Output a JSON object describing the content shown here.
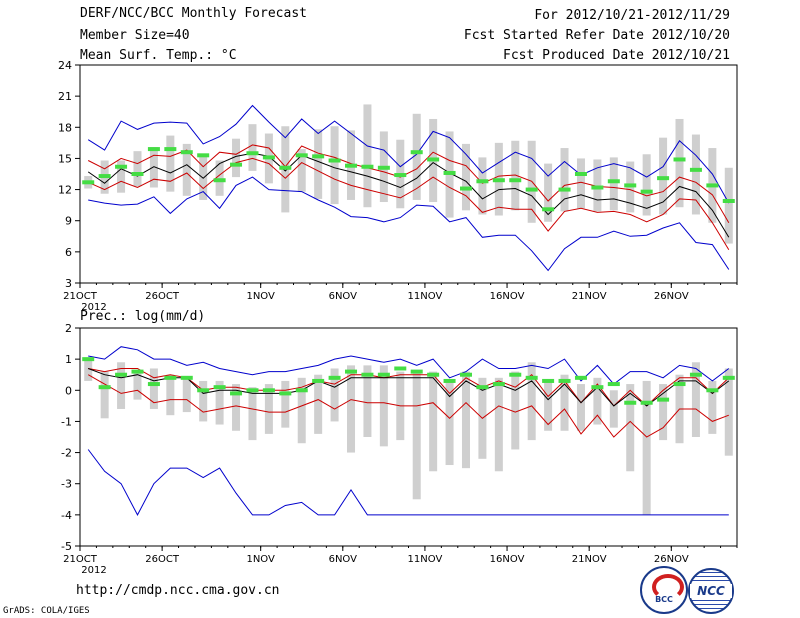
{
  "header": {
    "title": "DERF/NCC/BCC Monthly Forecast",
    "member_size": "Member Size=40",
    "variable1": "Mean Surf. Temp.: °C",
    "period": "For 2012/10/21-2012/11/29",
    "refer_date": "Fcst Started Refer Date 2012/10/20",
    "produced_date": "Fcst Produced Date 2012/10/21"
  },
  "footer": {
    "url": "http://cmdp.ncc.cma.gov.cn",
    "grads": "GrADS: COLA/IGES",
    "logo_bcc": "BCC",
    "logo_ncc": "NCC"
  },
  "colors": {
    "envelope": "#0000cc",
    "spread": "#cc0000",
    "mean": "#000000",
    "box": "#cfcfcf",
    "obs": "#44dd44"
  },
  "chart_data": [
    {
      "type": "line",
      "title": "Mean Surf. Temp.: °C",
      "ylim": [
        3,
        24
      ],
      "yticks": [
        3,
        6,
        9,
        12,
        15,
        18,
        21,
        24
      ],
      "xlabel_year": "2012",
      "xticks": [
        {
          "day": 1,
          "label": "21OCT"
        },
        {
          "day": 6,
          "label": "26OCT"
        },
        {
          "day": 12,
          "label": "1NOV"
        },
        {
          "day": 17,
          "label": "6NOV"
        },
        {
          "day": 22,
          "label": "11NOV"
        },
        {
          "day": 27,
          "label": "16NOV"
        },
        {
          "day": 32,
          "label": "21NOV"
        },
        {
          "day": 37,
          "label": "26NOV"
        }
      ],
      "days": 40,
      "series": [
        {
          "name": "max",
          "values": [
            16.8,
            15.8,
            18.6,
            17.8,
            18.4,
            18.5,
            18.4,
            16.4,
            17.1,
            18.3,
            20.1,
            18.5,
            17.0,
            18.8,
            17.4,
            18.6,
            17.4,
            16.2,
            15.8,
            14.2,
            15.4,
            17.6,
            17.0,
            15.4,
            13.6,
            14.6,
            15.6,
            15.0,
            13.3,
            14.7,
            13.4,
            14.1,
            14.5,
            14.1,
            13.2,
            14.2,
            16.7,
            15.3,
            13.5,
            10.7
          ]
        },
        {
          "name": "plus_sd",
          "values": [
            14.8,
            14.0,
            15.0,
            14.5,
            15.3,
            15.2,
            15.8,
            14.2,
            15.6,
            15.4,
            16.3,
            16.0,
            14.2,
            16.2,
            15.5,
            15.1,
            14.5,
            14.1,
            13.7,
            13.2,
            14.0,
            15.6,
            14.8,
            14.3,
            12.6,
            13.3,
            13.4,
            12.8,
            10.9,
            12.4,
            12.7,
            12.3,
            12.2,
            12.0,
            11.4,
            11.8,
            13.2,
            12.7,
            11.5,
            8.8
          ]
        },
        {
          "name": "mean",
          "values": [
            13.7,
            12.6,
            14.0,
            13.3,
            14.2,
            13.6,
            14.4,
            13.1,
            14.5,
            15.2,
            15.5,
            15.2,
            13.8,
            15.3,
            14.7,
            14.1,
            13.7,
            13.3,
            12.8,
            12.2,
            13.1,
            14.6,
            13.6,
            12.8,
            11.1,
            12.0,
            12.1,
            11.4,
            9.6,
            11.1,
            11.5,
            11.0,
            11.1,
            10.7,
            10.2,
            10.8,
            12.3,
            11.8,
            10.0,
            7.4
          ]
        },
        {
          "name": "minus_sd",
          "values": [
            12.7,
            12.0,
            12.8,
            12.2,
            13.0,
            12.8,
            13.6,
            12.1,
            13.4,
            14.6,
            15.0,
            14.5,
            13.1,
            14.6,
            13.8,
            13.0,
            12.4,
            12.0,
            11.6,
            11.2,
            12.1,
            13.2,
            12.2,
            11.4,
            9.8,
            10.3,
            10.1,
            10.1,
            8.0,
            9.9,
            10.2,
            9.8,
            9.9,
            9.6,
            8.9,
            9.6,
            11.1,
            11.0,
            8.8,
            6.2
          ]
        },
        {
          "name": "min",
          "values": [
            11.0,
            10.7,
            10.5,
            10.6,
            11.3,
            9.7,
            11.1,
            11.8,
            10.2,
            12.4,
            13.2,
            12.0,
            11.9,
            11.8,
            11.0,
            10.3,
            9.4,
            9.3,
            8.9,
            9.3,
            10.5,
            10.4,
            8.9,
            9.3,
            7.4,
            7.6,
            7.6,
            6.1,
            4.2,
            6.3,
            7.4,
            7.4,
            8.0,
            7.5,
            7.6,
            8.3,
            8.8,
            6.9,
            6.7,
            4.3
          ]
        },
        {
          "name": "box_hi",
          "values": [
            13.3,
            14.8,
            14.8,
            15.7,
            16.1,
            17.2,
            16.4,
            15.3,
            14.8,
            16.9,
            18.3,
            17.4,
            18.1,
            15.9,
            17.8,
            18.1,
            17.7,
            20.2,
            17.6,
            16.8,
            19.3,
            18.8,
            17.6,
            16.4,
            15.1,
            16.5,
            16.7,
            16.7,
            14.5,
            16.0,
            15.0,
            14.9,
            15.1,
            14.7,
            15.4,
            17.0,
            18.8,
            17.3,
            16.0,
            14.1
          ]
        },
        {
          "name": "box_lo",
          "values": [
            12.1,
            11.6,
            11.7,
            12.3,
            12.2,
            11.8,
            11.4,
            11.0,
            11.4,
            13.2,
            13.8,
            12.6,
            9.8,
            11.8,
            11.1,
            10.6,
            11.0,
            10.3,
            10.8,
            10.2,
            11.0,
            10.8,
            9.3,
            10.0,
            9.6,
            9.5,
            10.0,
            8.8,
            8.9,
            9.9,
            10.2,
            9.9,
            10.0,
            9.8,
            9.5,
            9.6,
            10.3,
            9.6,
            8.8,
            6.8
          ]
        },
        {
          "name": "observed",
          "values": [
            12.7,
            13.3,
            14.2,
            13.5,
            15.9,
            15.9,
            15.6,
            15.3,
            12.9,
            14.4,
            15.5,
            15.1,
            14.1,
            15.3,
            15.2,
            14.8,
            14.3,
            14.2,
            14.1,
            13.4,
            15.6,
            14.9,
            13.6,
            12.1,
            12.8,
            12.9,
            12.9,
            12.0,
            10.1,
            12.0,
            13.5,
            12.2,
            12.8,
            12.4,
            11.8,
            13.1,
            14.9,
            13.9,
            12.4,
            10.9
          ]
        }
      ]
    },
    {
      "type": "line",
      "title": "Prec.: log(mm/d)",
      "ylim": [
        -5,
        2
      ],
      "yticks": [
        -5,
        -4,
        -3,
        -2,
        -1,
        0,
        1,
        2
      ],
      "xlabel_year": "2012",
      "xticks": [
        {
          "day": 1,
          "label": "21OCT"
        },
        {
          "day": 6,
          "label": "26OCT"
        },
        {
          "day": 12,
          "label": "1NOV"
        },
        {
          "day": 17,
          "label": "6NOV"
        },
        {
          "day": 22,
          "label": "11NOV"
        },
        {
          "day": 27,
          "label": "16NOV"
        },
        {
          "day": 32,
          "label": "21NOV"
        },
        {
          "day": 37,
          "label": "26NOV"
        }
      ],
      "days": 40,
      "series": [
        {
          "name": "max",
          "values": [
            1.1,
            1.0,
            1.4,
            1.3,
            1.0,
            1.0,
            0.8,
            0.9,
            0.7,
            0.6,
            0.5,
            0.6,
            0.6,
            0.7,
            0.8,
            1.0,
            1.1,
            1.0,
            0.9,
            1.0,
            0.8,
            1.0,
            0.4,
            0.6,
            1.0,
            0.7,
            0.7,
            0.8,
            0.7,
            1.0,
            0.3,
            0.8,
            0.2,
            0.6,
            0.6,
            0.4,
            0.8,
            0.7,
            0.3,
            0.7
          ]
        },
        {
          "name": "plus_sd",
          "values": [
            0.7,
            0.6,
            0.7,
            0.7,
            0.4,
            0.5,
            0.4,
            0.0,
            0.1,
            0.1,
            0.0,
            0.0,
            0.0,
            0.1,
            0.3,
            0.2,
            0.5,
            0.5,
            0.4,
            0.5,
            0.5,
            0.5,
            -0.1,
            0.4,
            0.1,
            0.3,
            0.1,
            0.5,
            -0.2,
            0.3,
            -0.4,
            0.2,
            -0.5,
            0.0,
            -0.5,
            0.0,
            0.4,
            0.4,
            -0.1,
            0.4
          ]
        },
        {
          "name": "mean",
          "values": [
            0.7,
            0.5,
            0.4,
            0.5,
            0.3,
            0.4,
            0.4,
            -0.1,
            0.0,
            0.0,
            -0.1,
            -0.1,
            -0.1,
            0.0,
            0.3,
            0.1,
            0.4,
            0.4,
            0.4,
            0.4,
            0.4,
            0.4,
            -0.2,
            0.3,
            0.0,
            0.2,
            0.0,
            0.3,
            -0.3,
            0.2,
            -0.4,
            0.1,
            -0.5,
            -0.1,
            -0.5,
            -0.1,
            0.3,
            0.3,
            -0.1,
            0.3
          ]
        },
        {
          "name": "minus_sd",
          "values": [
            0.5,
            0.2,
            -0.1,
            0.0,
            -0.4,
            -0.3,
            -0.3,
            -0.7,
            -0.6,
            -0.5,
            -0.6,
            -0.7,
            -0.7,
            -0.5,
            -0.3,
            -0.6,
            -0.3,
            -0.4,
            -0.4,
            -0.5,
            -0.5,
            -0.4,
            -0.9,
            -0.4,
            -0.9,
            -0.5,
            -0.7,
            -0.5,
            -1.1,
            -0.6,
            -1.4,
            -0.8,
            -1.5,
            -1.0,
            -1.5,
            -1.2,
            -0.6,
            -0.6,
            -1.0,
            -0.8
          ]
        },
        {
          "name": "min",
          "values": [
            -1.9,
            -2.6,
            -3.0,
            -4.0,
            -3.0,
            -2.5,
            -2.5,
            -2.8,
            -2.5,
            -3.3,
            -4.0,
            -4.0,
            -3.7,
            -3.6,
            -4.0,
            -4.0,
            -3.2,
            -4.0,
            -4.0,
            -4.0,
            -4.0,
            -4.0,
            -4.0,
            -4.0,
            -4.0,
            -4.0,
            -4.0,
            -4.0,
            -4.0,
            -4.0,
            -4.0,
            -4.0,
            -4.0,
            -4.0,
            -4.0,
            -4.0,
            -4.0,
            -4.0,
            -4.0,
            -4.0
          ]
        },
        {
          "name": "box_hi",
          "values": [
            1.0,
            0.6,
            0.9,
            0.6,
            0.7,
            0.5,
            0.4,
            0.3,
            0.3,
            0.2,
            0.1,
            0.2,
            0.3,
            0.4,
            0.5,
            0.7,
            0.8,
            0.8,
            0.8,
            0.6,
            0.6,
            0.6,
            0.3,
            0.6,
            0.4,
            0.4,
            0.6,
            0.9,
            0.3,
            0.5,
            0.2,
            0.4,
            0.0,
            0.2,
            0.3,
            0.2,
            0.5,
            0.9,
            0.3,
            0.7
          ]
        },
        {
          "name": "box_lo",
          "values": [
            0.3,
            -0.9,
            -0.6,
            -0.3,
            -0.6,
            -0.8,
            -0.7,
            -1.0,
            -1.1,
            -1.3,
            -1.6,
            -1.4,
            -1.2,
            -1.7,
            -1.4,
            -1.0,
            -2.0,
            -1.5,
            -1.8,
            -1.6,
            -3.5,
            -2.6,
            -2.4,
            -2.5,
            -2.2,
            -2.6,
            -1.9,
            -1.6,
            -1.3,
            -1.3,
            -1.3,
            -1.1,
            -1.2,
            -2.6,
            -4.0,
            -1.6,
            -1.7,
            -1.5,
            -1.4,
            -2.1
          ]
        },
        {
          "name": "observed",
          "values": [
            1.0,
            0.1,
            0.5,
            0.6,
            0.2,
            0.4,
            0.4,
            0.0,
            0.1,
            -0.1,
            0.0,
            0.0,
            -0.1,
            0.0,
            0.3,
            0.4,
            0.6,
            0.5,
            0.5,
            0.7,
            0.6,
            0.5,
            0.3,
            0.5,
            0.1,
            0.2,
            0.5,
            0.4,
            0.3,
            0.3,
            0.4,
            0.1,
            0.2,
            -0.4,
            -0.4,
            -0.3,
            0.2,
            0.5,
            0.0,
            0.4
          ]
        }
      ]
    }
  ]
}
